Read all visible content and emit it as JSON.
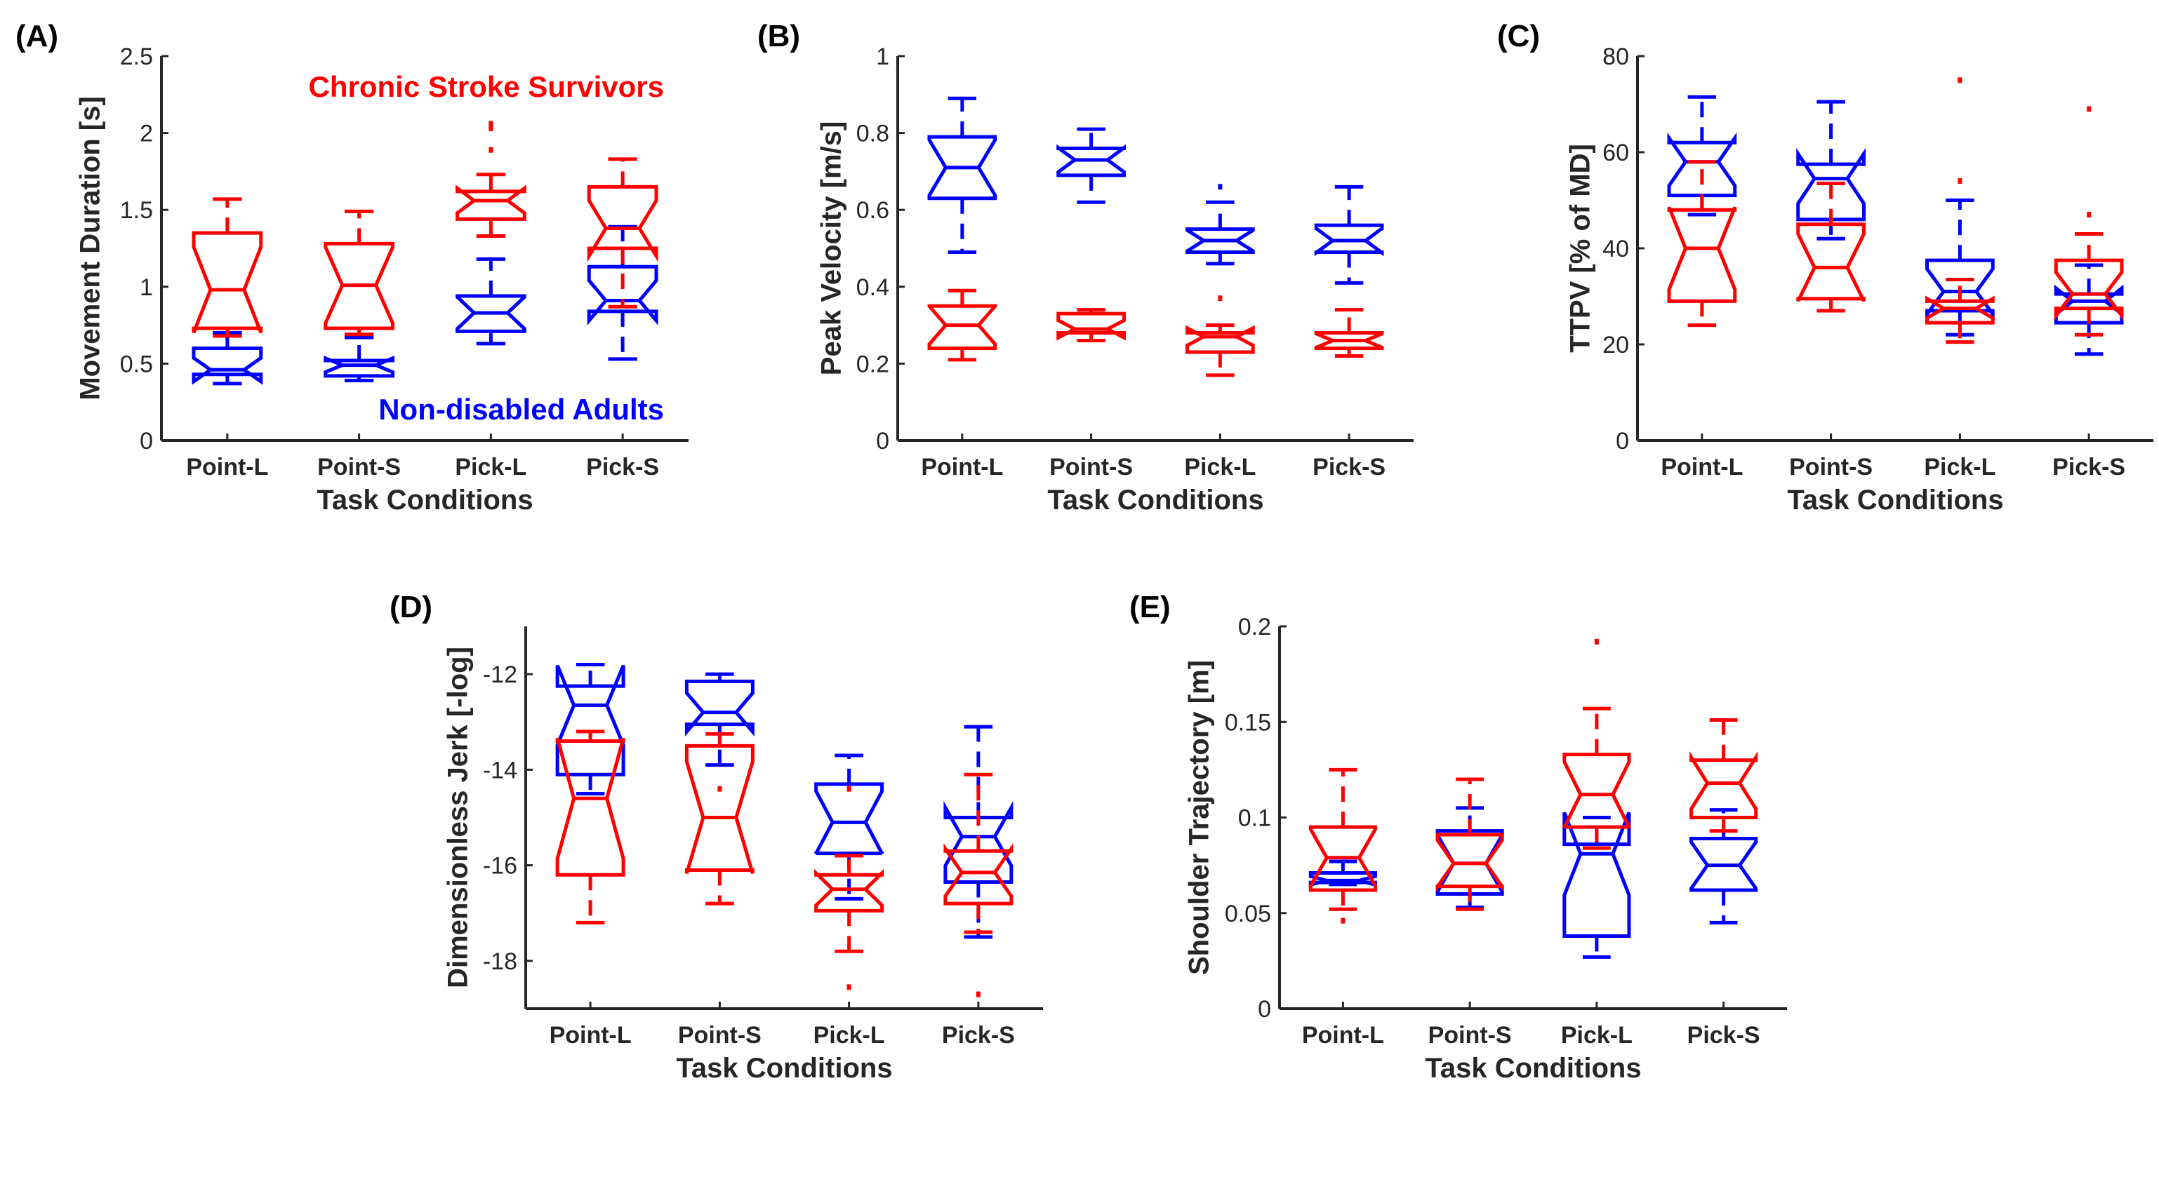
{
  "colors": {
    "stroke_group": "#ff0000",
    "adult_group": "#0000ff",
    "axis": "#262626"
  },
  "legend": {
    "stroke_label": "Chronic Stroke Survivors",
    "adult_label": "Non-disabled Adults"
  },
  "chart_data": [
    {
      "panel": "(A)",
      "type": "box",
      "ylabel": "Movement Duration [s]",
      "xlabel": "Task Conditions",
      "categories": [
        "Point-L",
        "Point-S",
        "Pick-L",
        "Pick-S"
      ],
      "ylim": [
        0,
        2.5
      ],
      "yticks": [
        "0",
        "0.5",
        "1",
        "1.5",
        "2",
        "2.5"
      ],
      "ytick_values": [
        0,
        0.5,
        1,
        1.5,
        2,
        2.5
      ],
      "series": [
        {
          "name": "Non-disabled Adults",
          "group": "adult",
          "boxes": [
            {
              "lo": 0.37,
              "q1": 0.43,
              "med": 0.46,
              "q3": 0.6,
              "hi": 0.7,
              "outliers": []
            },
            {
              "lo": 0.39,
              "q1": 0.42,
              "med": 0.49,
              "q3": 0.52,
              "hi": 0.67,
              "outliers": []
            },
            {
              "lo": 0.63,
              "q1": 0.71,
              "med": 0.83,
              "q3": 0.94,
              "hi": 1.18,
              "outliers": []
            },
            {
              "lo": 0.53,
              "q1": 0.84,
              "med": 0.91,
              "q3": 1.13,
              "hi": 1.39,
              "outliers": []
            }
          ]
        },
        {
          "name": "Chronic Stroke Survivors",
          "group": "stroke",
          "boxes": [
            {
              "lo": 0.68,
              "q1": 0.73,
              "med": 0.98,
              "q3": 1.35,
              "hi": 1.57,
              "outliers": []
            },
            {
              "lo": 0.69,
              "q1": 0.73,
              "med": 1.01,
              "q3": 1.28,
              "hi": 1.49,
              "outliers": []
            },
            {
              "lo": 1.33,
              "q1": 1.44,
              "med": 1.56,
              "q3": 1.62,
              "hi": 1.73,
              "outliers": [
                1.89,
                2.03,
                2.06
              ]
            },
            {
              "lo": 0.87,
              "q1": 1.25,
              "med": 1.38,
              "q3": 1.65,
              "hi": 1.83,
              "outliers": []
            }
          ]
        }
      ]
    },
    {
      "panel": "(B)",
      "type": "box",
      "ylabel": "Peak Velocity [m/s]",
      "xlabel": "Task Conditions",
      "categories": [
        "Point-L",
        "Point-S",
        "Pick-L",
        "Pick-S"
      ],
      "ylim": [
        0,
        1
      ],
      "yticks": [
        "0",
        "0.2",
        "0.4",
        "0.6",
        "0.8",
        "1"
      ],
      "ytick_values": [
        0,
        0.2,
        0.4,
        0.6,
        0.8,
        1
      ],
      "series": [
        {
          "name": "Non-disabled Adults",
          "group": "adult",
          "boxes": [
            {
              "lo": 0.49,
              "q1": 0.63,
              "med": 0.71,
              "q3": 0.79,
              "hi": 0.89,
              "outliers": []
            },
            {
              "lo": 0.62,
              "q1": 0.69,
              "med": 0.73,
              "q3": 0.76,
              "hi": 0.81,
              "outliers": []
            },
            {
              "lo": 0.46,
              "q1": 0.49,
              "med": 0.52,
              "q3": 0.55,
              "hi": 0.62,
              "outliers": [
                0.66
              ]
            },
            {
              "lo": 0.41,
              "q1": 0.49,
              "med": 0.52,
              "q3": 0.56,
              "hi": 0.66,
              "outliers": []
            }
          ]
        },
        {
          "name": "Chronic Stroke Survivors",
          "group": "stroke",
          "boxes": [
            {
              "lo": 0.21,
              "q1": 0.24,
              "med": 0.3,
              "q3": 0.35,
              "hi": 0.39,
              "outliers": []
            },
            {
              "lo": 0.26,
              "q1": 0.28,
              "med": 0.29,
              "q3": 0.33,
              "hi": 0.34,
              "outliers": []
            },
            {
              "lo": 0.17,
              "q1": 0.23,
              "med": 0.27,
              "q3": 0.28,
              "hi": 0.3,
              "outliers": [
                0.37
              ]
            },
            {
              "lo": 0.22,
              "q1": 0.24,
              "med": 0.26,
              "q3": 0.28,
              "hi": 0.34,
              "outliers": []
            }
          ]
        }
      ]
    },
    {
      "panel": "(C)",
      "type": "box",
      "ylabel": "TTPV [% of MD]",
      "xlabel": "Task Conditions",
      "categories": [
        "Point-L",
        "Point-S",
        "Pick-L",
        "Pick-S"
      ],
      "ylim": [
        0,
        80
      ],
      "yticks": [
        "0",
        "20",
        "40",
        "60",
        "80"
      ],
      "ytick_values": [
        0,
        20,
        40,
        60,
        80
      ],
      "series": [
        {
          "name": "Non-disabled Adults",
          "group": "adult",
          "boxes": [
            {
              "lo": 47,
              "q1": 51,
              "med": 58,
              "q3": 62,
              "hi": 71.5,
              "outliers": []
            },
            {
              "lo": 42,
              "q1": 46,
              "med": 54.5,
              "q3": 57.5,
              "hi": 70.5,
              "outliers": []
            },
            {
              "lo": 22,
              "q1": 27,
              "med": 31,
              "q3": 37.5,
              "hi": 50,
              "outliers": []
            },
            {
              "lo": 18,
              "q1": 24.5,
              "med": 29,
              "q3": 30.5,
              "hi": 36.5,
              "outliers": []
            }
          ]
        },
        {
          "name": "Chronic Stroke Survivors",
          "group": "stroke",
          "boxes": [
            {
              "lo": 24,
              "q1": 29,
              "med": 40,
              "q3": 48,
              "hi": 58,
              "outliers": []
            },
            {
              "lo": 27,
              "q1": 29.5,
              "med": 36,
              "q3": 45,
              "hi": 53.5,
              "outliers": []
            },
            {
              "lo": 20.5,
              "q1": 24.5,
              "med": 27.5,
              "q3": 29,
              "hi": 33.5,
              "outliers": [
                54,
                75
              ]
            },
            {
              "lo": 22,
              "q1": 27.5,
              "med": 30.5,
              "q3": 37.5,
              "hi": 43,
              "outliers": [
                47,
                69
              ]
            }
          ]
        }
      ]
    },
    {
      "panel": "(D)",
      "type": "box",
      "ylabel": "Dimensionless Jerk [-log]",
      "xlabel": "Task Conditions",
      "categories": [
        "Point-L",
        "Point-S",
        "Pick-L",
        "Pick-S"
      ],
      "ylim": [
        -19,
        -11
      ],
      "yticks": [
        "-18",
        "-16",
        "-14",
        "-12"
      ],
      "ytick_values": [
        -18,
        -16,
        -14,
        -12
      ],
      "series": [
        {
          "name": "Non-disabled Adults",
          "group": "adult",
          "boxes": [
            {
              "lo": -14.5,
              "q1": -14.1,
              "med": -12.65,
              "q3": -12.25,
              "hi": -11.8,
              "outliers": []
            },
            {
              "lo": -13.9,
              "q1": -13.05,
              "med": -12.8,
              "q3": -12.15,
              "hi": -12.0,
              "outliers": []
            },
            {
              "lo": -16.7,
              "q1": -15.75,
              "med": -15.1,
              "q3": -14.3,
              "hi": -13.7,
              "outliers": []
            },
            {
              "lo": -17.5,
              "q1": -16.35,
              "med": -15.4,
              "q3": -15.0,
              "hi": -13.1,
              "outliers": []
            }
          ]
        },
        {
          "name": "Chronic Stroke Survivors",
          "group": "stroke",
          "boxes": [
            {
              "lo": -17.2,
              "q1": -16.2,
              "med": -14.6,
              "q3": -13.4,
              "hi": -13.2,
              "outliers": []
            },
            {
              "lo": -16.8,
              "q1": -16.1,
              "med": -15.0,
              "q3": -13.5,
              "hi": -13.25,
              "outliers": [
                -14.4
              ]
            },
            {
              "lo": -17.8,
              "q1": -16.95,
              "med": -16.5,
              "q3": -16.2,
              "hi": -15.8,
              "outliers": [
                -14.4,
                -18.55
              ]
            },
            {
              "lo": -17.4,
              "q1": -16.8,
              "med": -16.15,
              "q3": -15.7,
              "hi": -14.1,
              "outliers": [
                -18.7
              ]
            }
          ]
        }
      ]
    },
    {
      "panel": "(E)",
      "type": "box",
      "ylabel": "Shoulder Trajectory [m]",
      "xlabel": "Task Conditions",
      "categories": [
        "Point-L",
        "Point-S",
        "Pick-L",
        "Pick-S"
      ],
      "ylim": [
        0,
        0.2
      ],
      "yticks": [
        "0",
        "0.05",
        "0.1",
        "0.15",
        "0.2"
      ],
      "ytick_values": [
        0,
        0.05,
        0.1,
        0.15,
        0.2
      ],
      "series": [
        {
          "name": "Non-disabled Adults",
          "group": "adult",
          "boxes": [
            {
              "lo": 0.065,
              "q1": 0.066,
              "med": 0.067,
              "q3": 0.071,
              "hi": 0.077,
              "outliers": []
            },
            {
              "lo": 0.053,
              "q1": 0.06,
              "med": 0.076,
              "q3": 0.093,
              "hi": 0.105,
              "outliers": []
            },
            {
              "lo": 0.027,
              "q1": 0.038,
              "med": 0.081,
              "q3": 0.086,
              "hi": 0.1,
              "outliers": []
            },
            {
              "lo": 0.045,
              "q1": 0.062,
              "med": 0.075,
              "q3": 0.089,
              "hi": 0.104,
              "outliers": []
            }
          ]
        },
        {
          "name": "Chronic Stroke Survivors",
          "group": "stroke",
          "boxes": [
            {
              "lo": 0.052,
              "q1": 0.062,
              "med": 0.079,
              "q3": 0.095,
              "hi": 0.125,
              "outliers": [
                0.046
              ]
            },
            {
              "lo": 0.052,
              "q1": 0.064,
              "med": 0.076,
              "q3": 0.091,
              "hi": 0.12,
              "outliers": []
            },
            {
              "lo": 0.084,
              "q1": 0.095,
              "med": 0.112,
              "q3": 0.133,
              "hi": 0.157,
              "outliers": [
                0.192
              ]
            },
            {
              "lo": 0.093,
              "q1": 0.1,
              "med": 0.118,
              "q3": 0.13,
              "hi": 0.151,
              "outliers": []
            }
          ]
        }
      ]
    }
  ]
}
